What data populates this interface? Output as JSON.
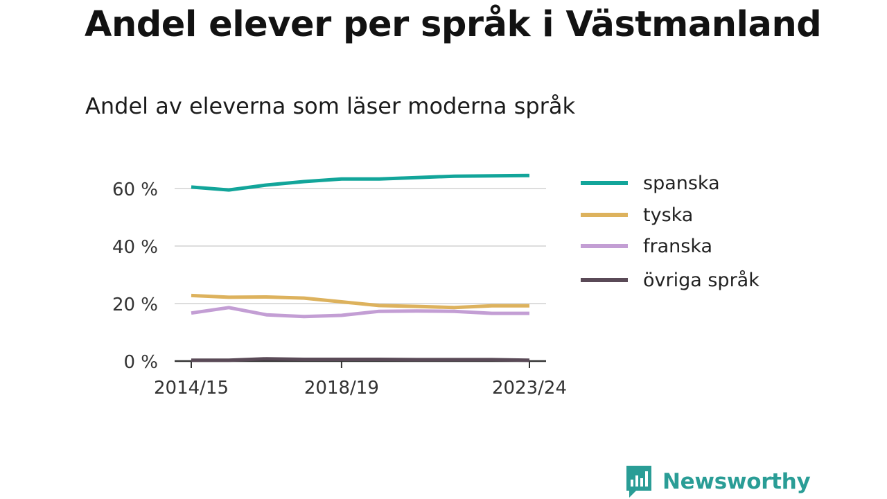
{
  "title": "Andel elever per språk i Västmanland",
  "subtitle": "Andel av eleverna som läser moderna språk",
  "brand": "Newsworthy",
  "colors": {
    "spanska": "#12a59a",
    "tyska": "#ddb25d",
    "franska": "#c39ed4",
    "ovriga": "#5a4a57",
    "grid": "#dddddd",
    "axis": "#333333",
    "brand": "#2a9d96"
  },
  "chart_data": {
    "type": "line",
    "title": "Andel av eleverna som läser moderna språk",
    "x": [
      "2014/15",
      "2015/16",
      "2016/17",
      "2017/18",
      "2018/19",
      "2019/20",
      "2020/21",
      "2021/22",
      "2022/23",
      "2023/24"
    ],
    "x_tick_labels": [
      "2014/15",
      "2018/19",
      "2023/24"
    ],
    "y_ticks": [
      0,
      20,
      40,
      60
    ],
    "y_tick_labels": [
      "0 %",
      "20 %",
      "40 %",
      "60 %"
    ],
    "ylim": [
      0,
      66
    ],
    "grid": true,
    "legend_position": "right",
    "series": [
      {
        "name": "spanska",
        "values": [
          60.5,
          59.5,
          61.2,
          62.4,
          63.3,
          63.3,
          63.8,
          64.3,
          64.4,
          64.5
        ]
      },
      {
        "name": "tyska",
        "values": [
          22.8,
          22.2,
          22.3,
          21.9,
          20.6,
          19.3,
          19.0,
          18.6,
          19.2,
          19.2
        ]
      },
      {
        "name": "franska",
        "values": [
          16.7,
          18.6,
          16.1,
          15.5,
          15.9,
          17.3,
          17.4,
          17.3,
          16.6,
          16.6
        ]
      },
      {
        "name": "övriga språk",
        "values": [
          0.3,
          0.3,
          0.8,
          0.6,
          0.6,
          0.6,
          0.5,
          0.5,
          0.5,
          0.3
        ]
      }
    ]
  }
}
